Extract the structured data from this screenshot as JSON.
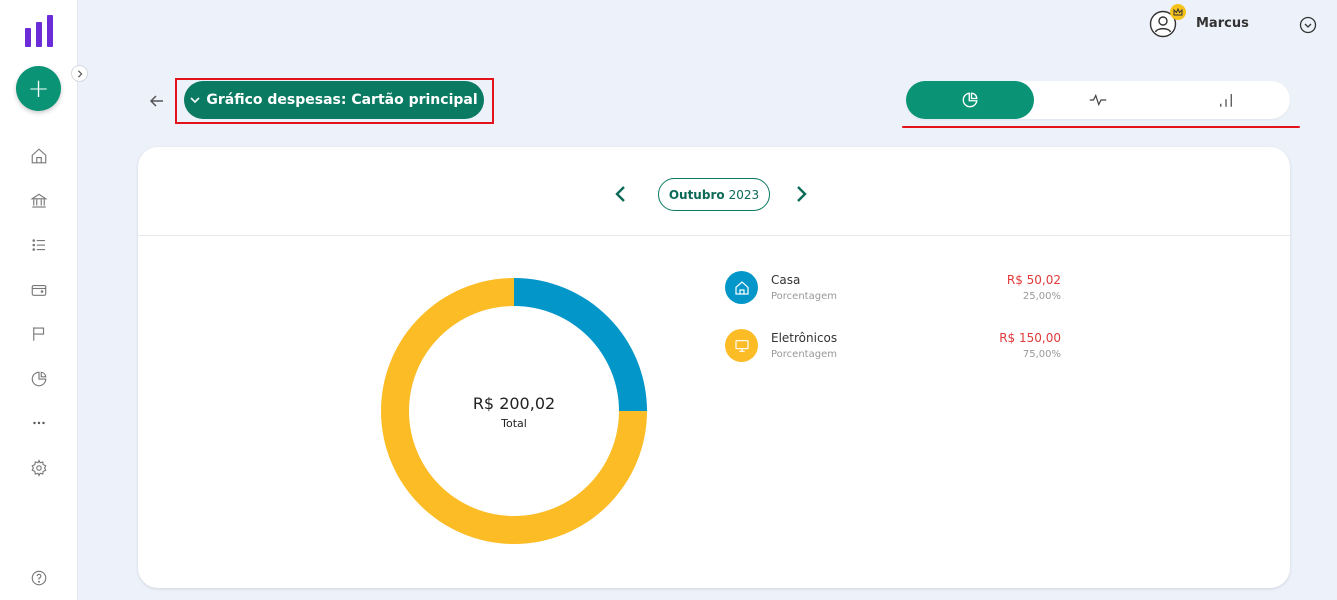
{
  "user": {
    "name": "Marcus"
  },
  "header": {
    "title": "Gráfico despesas: Cartão principal"
  },
  "chart_tabs": [
    {
      "icon": "pie-chart-icon",
      "active": true
    },
    {
      "icon": "line-chart-icon",
      "active": false
    },
    {
      "icon": "bar-chart-icon",
      "active": false
    }
  ],
  "period": {
    "month": "Outubro",
    "year": "2023"
  },
  "summary": {
    "total": "R$ 200,02",
    "total_label": "Total"
  },
  "categories": [
    {
      "name": "Casa",
      "sub": "Porcentagem",
      "amount": "R$ 50,02",
      "percent": "25,00%",
      "color": "#0396c9",
      "icon": "home-icon"
    },
    {
      "name": "Eletrônicos",
      "sub": "Porcentagem",
      "amount": "R$ 150,00",
      "percent": "75,00%",
      "color": "#fbbc25",
      "icon": "monitor-icon"
    }
  ],
  "chart_data": {
    "type": "pie",
    "categories": [
      "Casa",
      "Eletrônicos"
    ],
    "values": [
      50.02,
      150.0
    ],
    "colors": [
      "#0396c9",
      "#fbbc25"
    ],
    "title": "",
    "center_label": "R$ 200,02"
  },
  "colors": {
    "brand": "#0a9475",
    "brand_dark": "#0b7a63",
    "logo": "#6b2bd6",
    "expense": "#e03a3a",
    "highlight": "#e3121b"
  }
}
